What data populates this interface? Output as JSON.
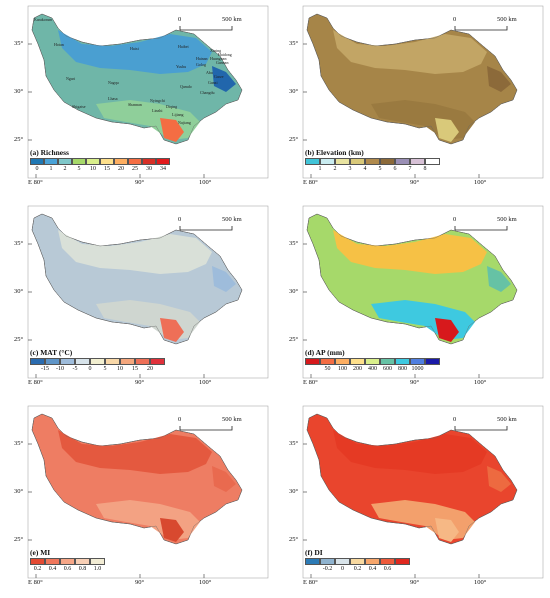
{
  "scale_bar": {
    "zero": "0",
    "distance": "500 km"
  },
  "latitude_ticks": [
    "35°",
    "30°",
    "25°"
  ],
  "longitude_ticks": [
    "E 80°",
    "90°",
    "100°"
  ],
  "panels": [
    {
      "id": "a",
      "title": "(a) Richness",
      "legend_colors": [
        "#1f78b4",
        "#4aa3d8",
        "#7fc7c9",
        "#a6d96a",
        "#d9ef8b",
        "#fee08b",
        "#fdae61",
        "#f46d43",
        "#d73027",
        "#e31a1c"
      ],
      "legend_labels": [
        "0",
        "1",
        "2",
        "5",
        "10",
        "15",
        "20",
        "25",
        "30",
        "34"
      ],
      "place_names": [
        "Karakorum",
        "Hotan",
        "Ngari",
        "Shigatse",
        "Lhasa",
        "Nyingchi",
        "Nagqu",
        "Qamdo",
        "Yushu",
        "Haixi",
        "Golog",
        "Xining",
        "Haibei",
        "Ganzi",
        "Aba",
        "Lijiang",
        "Diqing",
        "Nujiang",
        "Shannan",
        "Changdu",
        "Linzhi",
        "Gannan",
        "Hainan",
        "Huangnan",
        "Haidong",
        "Garze"
      ],
      "map_colors": {
        "main": "#6fb6a8",
        "north": "#4a9fd1",
        "south": "#8fcf9a",
        "hot": "#f46d43",
        "deep": "#2166ac"
      }
    },
    {
      "id": "b",
      "title": "(b) Elevation (km)",
      "legend_colors": [
        "#41c4d8",
        "#c9ecf0",
        "#e8e3a0",
        "#d9c97a",
        "#b08a4d",
        "#8c6a3a",
        "#9a8fb5",
        "#d7c1d6",
        "#ffffff"
      ],
      "legend_labels": [
        "1",
        "2",
        "3",
        "4",
        "5",
        "6",
        "7",
        "8"
      ],
      "map_colors": {
        "main": "#a68548",
        "north": "#c2a565",
        "south": "#9a7a40",
        "hot": "#d9c97a",
        "deep": "#8c6a3a"
      }
    },
    {
      "id": "c",
      "title": "(c) MAT (°C)",
      "legend_colors": [
        "#2b6cb0",
        "#5f95c8",
        "#9ebcdb",
        "#d7e3ea",
        "#f2efd0",
        "#f9d8a8",
        "#f5a77d",
        "#ee6f57",
        "#e0313b"
      ],
      "legend_labels": [
        "-15",
        "-10",
        "-5",
        "0",
        "5",
        "10",
        "15",
        "20"
      ],
      "map_colors": {
        "main": "#b8c9d6",
        "north": "#d9e0d8",
        "south": "#cfd6d0",
        "hot": "#ee6f57",
        "deep": "#9ebcdb"
      }
    },
    {
      "id": "d",
      "title": "(d) AP (mm)",
      "legend_colors": [
        "#d7191c",
        "#f46d43",
        "#fdae61",
        "#fee08b",
        "#d9ef8b",
        "#66c2a5",
        "#3ec9e0",
        "#4f7fe0",
        "#1a1aa8"
      ],
      "legend_labels": [
        "50",
        "100",
        "200",
        "400",
        "600",
        "800",
        "1000"
      ],
      "map_colors": {
        "main": "#a6d96a",
        "north": "#f6c145",
        "south": "#3ec9e0",
        "hot": "#d7191c",
        "deep": "#66c2a5"
      }
    },
    {
      "id": "e",
      "title": "(e) MI",
      "legend_colors": [
        "#e34a33",
        "#f0775c",
        "#f6a687",
        "#f8cfb5",
        "#f2ecd4"
      ],
      "legend_labels": [
        "0.2",
        "0.4",
        "0.6",
        "0.8",
        "1.0"
      ],
      "map_colors": {
        "main": "#ee7d63",
        "north": "#e4593f",
        "south": "#f3a283",
        "hot": "#d8492f",
        "deep": "#e96a4f"
      }
    },
    {
      "id": "f",
      "title": "(f) DI",
      "legend_colors": [
        "#2c7bb6",
        "#8fb3cf",
        "#d9e4ea",
        "#f8d9a0",
        "#f7a66b",
        "#ee5a3b",
        "#e0281f"
      ],
      "legend_labels": [
        "-0.2",
        "0",
        "0.2",
        "0.4",
        "0.6"
      ],
      "map_colors": {
        "main": "#e9452d",
        "north": "#e53a24",
        "south": "#f3a06c",
        "hot": "#f6b885",
        "deep": "#ed6a40"
      }
    }
  ]
}
